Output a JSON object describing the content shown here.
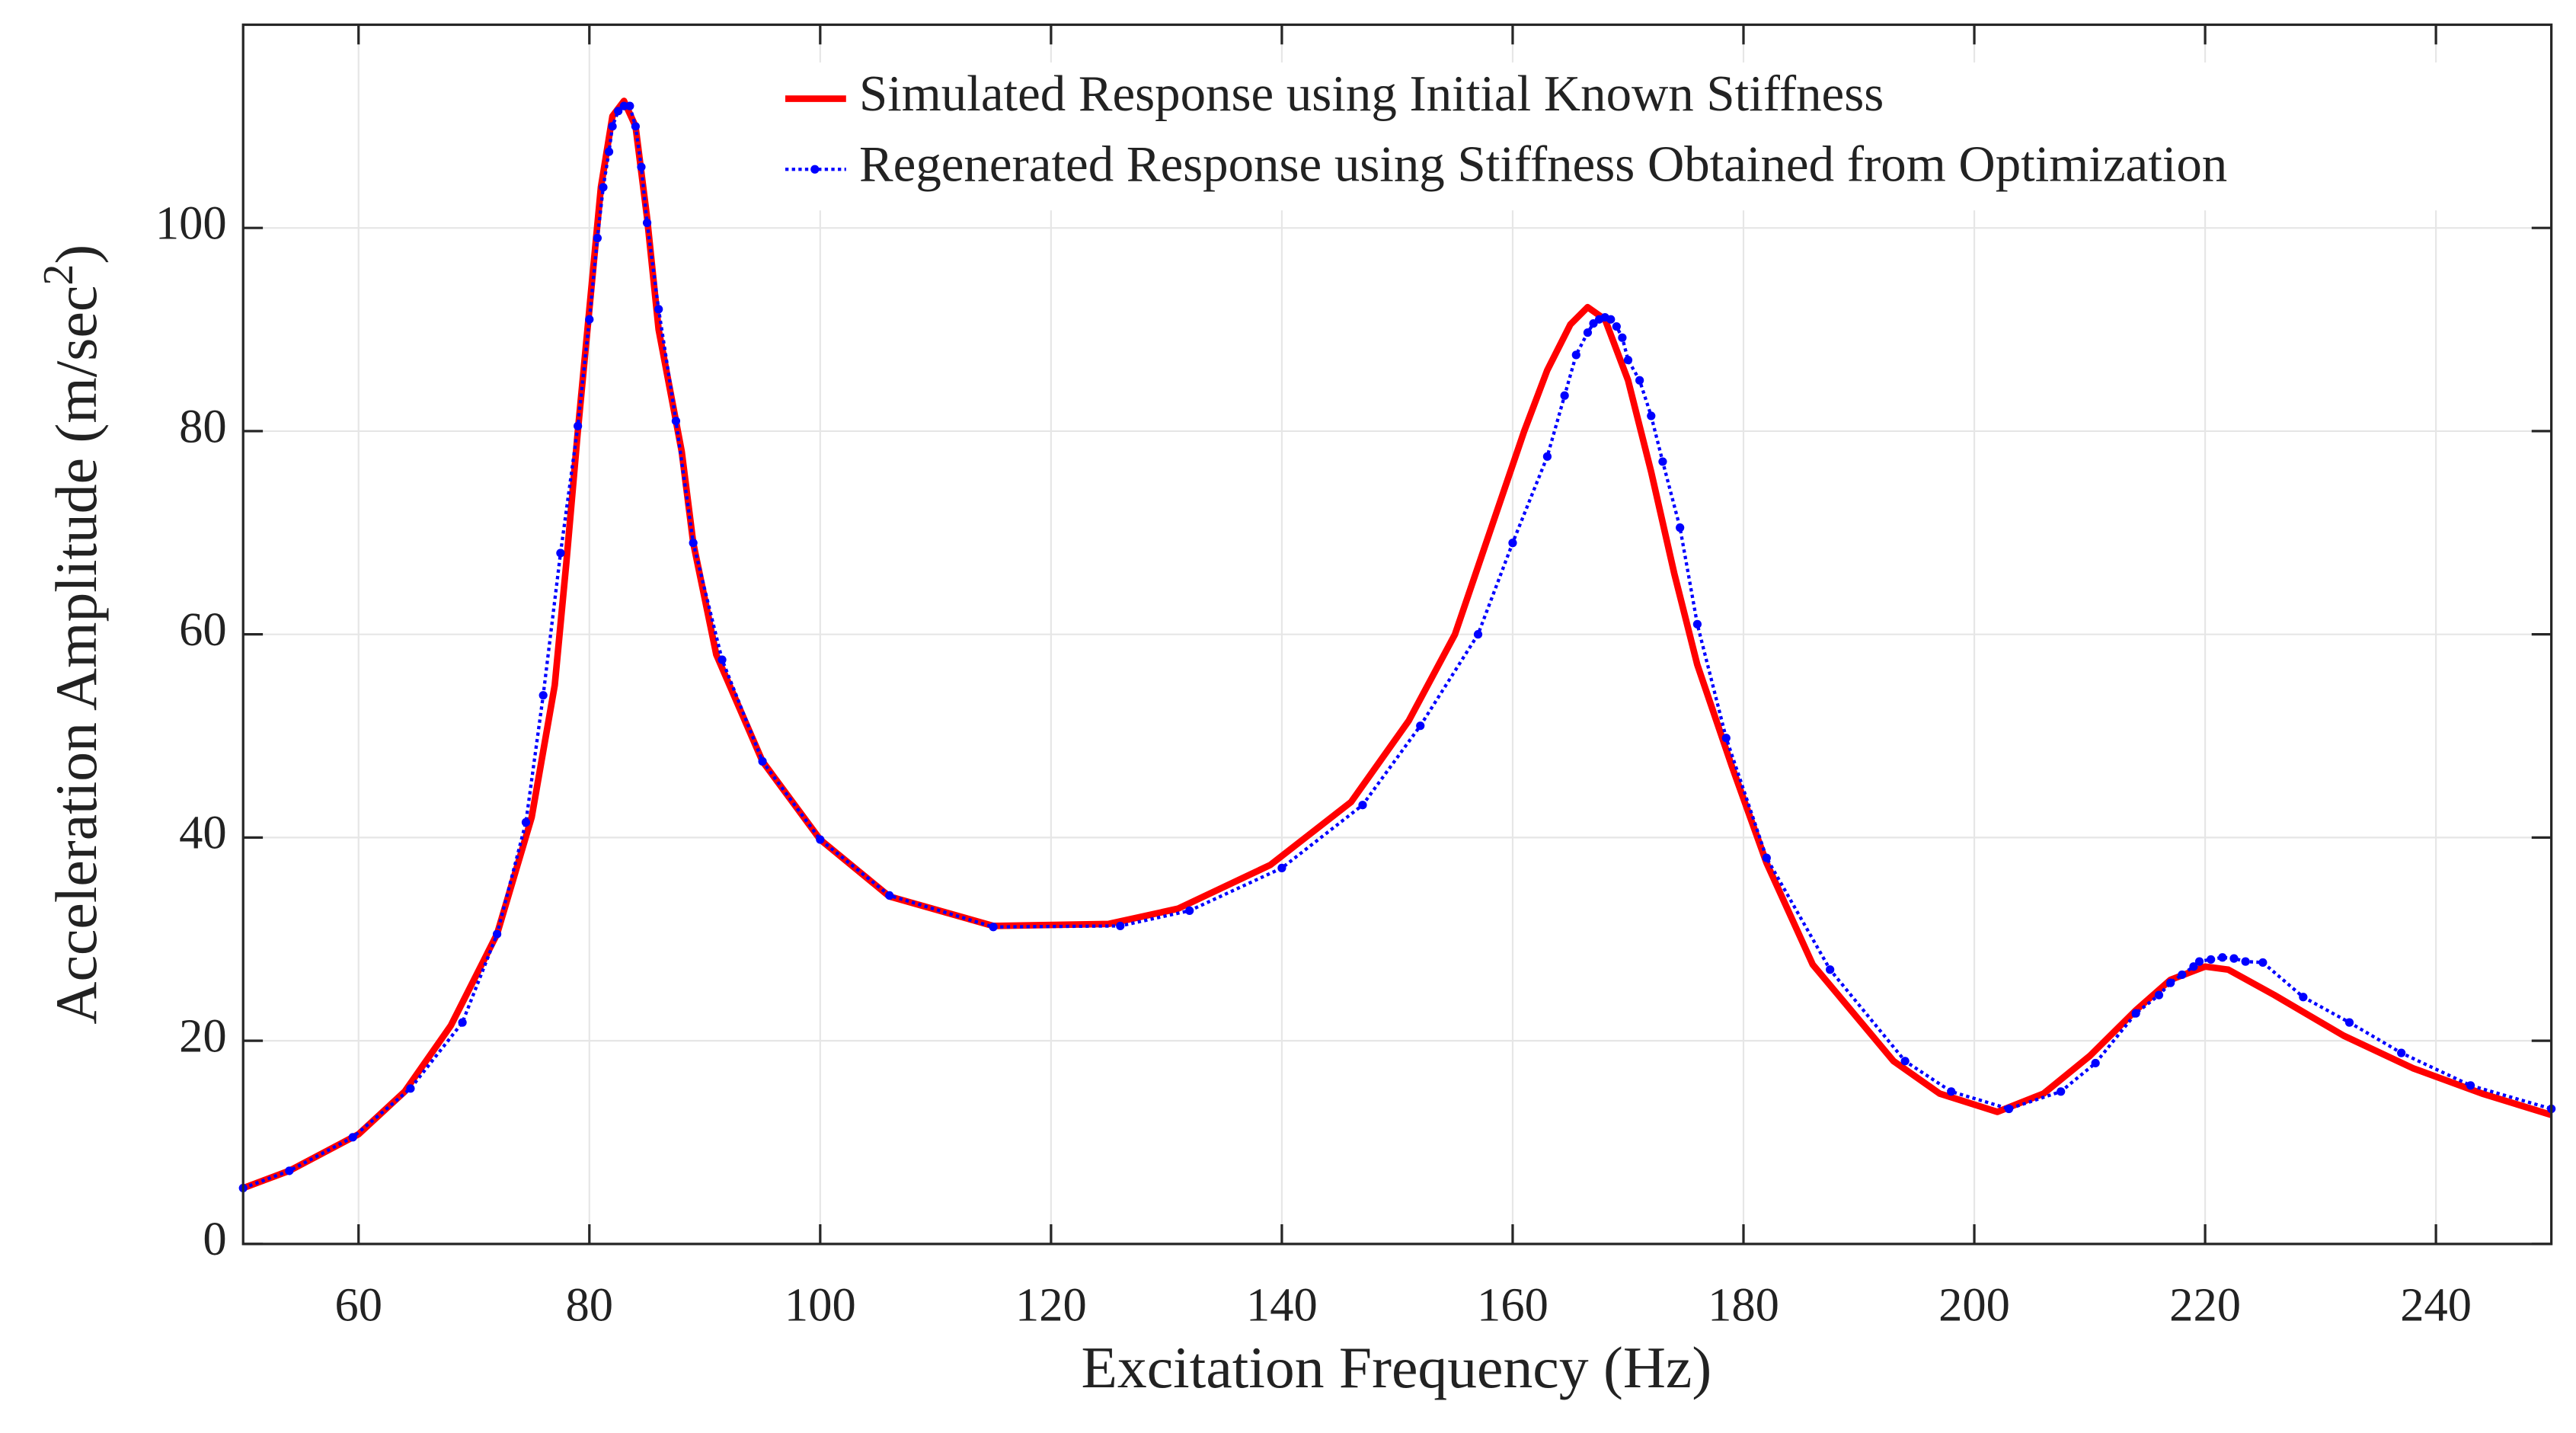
{
  "chart_data": {
    "type": "line",
    "xlabel": "Excitation Frequency (Hz)",
    "ylabel": "Acceleration Amplitude (m/sec",
    "ylabel_sup": "2",
    "ylabel_end": ")",
    "xlim": [
      50,
      250
    ],
    "xticks": [
      60,
      80,
      100,
      120,
      140,
      160,
      180,
      200,
      220,
      240
    ],
    "ylim": [
      0,
      120
    ],
    "yticks": [
      0,
      20,
      40,
      60,
      80,
      100
    ],
    "grid": true,
    "legend": "upper right",
    "series": [
      {
        "name": "Simulated Response using Initial Known Stiffness",
        "color": "#ff0000",
        "style": "solid",
        "markers": false,
        "x": [
          50,
          54,
          60,
          64,
          68,
          72,
          75,
          77,
          78,
          79,
          80,
          81,
          82,
          83,
          84,
          85,
          86,
          88,
          89,
          91,
          95,
          100,
          106,
          115,
          125,
          131,
          139,
          146,
          151,
          155,
          158,
          161,
          163,
          165,
          166.5,
          168,
          170,
          172,
          174,
          176,
          179,
          182,
          186,
          193,
          197,
          202,
          206,
          210,
          214,
          217,
          220,
          222,
          226,
          232,
          238,
          244,
          250
        ],
        "values": [
          5.5,
          7.2,
          10.8,
          15,
          21.5,
          30.5,
          42,
          55,
          67,
          80,
          92,
          104,
          111,
          112.5,
          110,
          101,
          90,
          78,
          69,
          58,
          47.5,
          39.8,
          34.2,
          31.3,
          31.5,
          33,
          37.3,
          43.5,
          51.5,
          60,
          70,
          80,
          86,
          90.5,
          92.2,
          91,
          85,
          76,
          66,
          57,
          47,
          37.5,
          27.5,
          18,
          14.8,
          13,
          14.8,
          18.5,
          23,
          26,
          27.3,
          27,
          24.5,
          20.5,
          17.3,
          14.8,
          12.7
        ]
      },
      {
        "name": "Regenerated Response using Stiffness Obtained from Optimization",
        "color": "#0000ff",
        "style": "dotted",
        "markers": true,
        "x": [
          50,
          54,
          59.5,
          64.5,
          69,
          72,
          74.5,
          76,
          77.5,
          79,
          80,
          80.7,
          81.2,
          81.7,
          82,
          82.5,
          83,
          83.5,
          84,
          84.5,
          85,
          86,
          87.5,
          89,
          91.5,
          95,
          100,
          106,
          115,
          126,
          132,
          140,
          147,
          152,
          157,
          160,
          163,
          164.5,
          165.5,
          166.5,
          167,
          167.5,
          168,
          168.5,
          169,
          169.5,
          170,
          171,
          172,
          173,
          174.5,
          176,
          178.5,
          182,
          187.5,
          194,
          198,
          203,
          207.5,
          210.5,
          214,
          216,
          217,
          218,
          219,
          219.5,
          220.5,
          221.5,
          222.5,
          223.5,
          225,
          228.5,
          232.5,
          237,
          243,
          250
        ],
        "values": [
          5.5,
          7.2,
          10.5,
          15.3,
          21.8,
          30.5,
          41.5,
          54,
          68,
          80.5,
          91,
          99,
          104,
          107.5,
          110,
          111.5,
          112,
          112,
          110,
          106,
          100.5,
          92,
          81,
          69,
          57.5,
          47.5,
          39.8,
          34.3,
          31.2,
          31.3,
          32.8,
          37,
          43.2,
          51,
          60,
          69,
          77.5,
          83.5,
          87.5,
          89.7,
          90.6,
          91,
          91.2,
          91,
          90.3,
          89.2,
          87,
          85,
          81.5,
          77,
          70.5,
          61,
          49.8,
          38,
          27,
          18,
          15,
          13.3,
          15,
          17.8,
          22.7,
          24.5,
          25.7,
          26.5,
          27.3,
          27.8,
          28,
          28.2,
          28.1,
          27.8,
          27.7,
          24.3,
          21.8,
          18.8,
          15.6,
          13.3
        ]
      }
    ]
  }
}
